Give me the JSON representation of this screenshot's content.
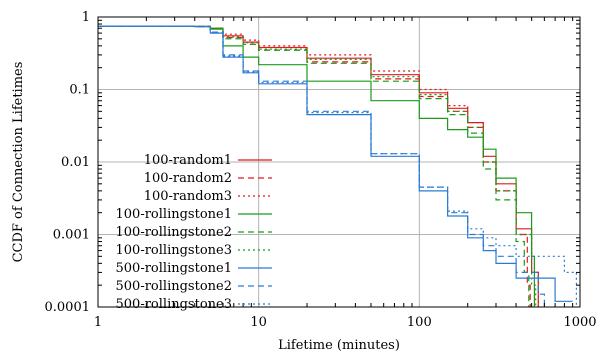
{
  "chart_data": {
    "type": "line",
    "title": "",
    "xlabel": "Lifetime (minutes)",
    "ylabel": "CCDF of Connection Lifetimes",
    "x_scale": "log",
    "y_scale": "log",
    "xlim": [
      1,
      1000
    ],
    "ylim": [
      0.0001,
      1
    ],
    "grid": true,
    "legend_position": "left-center",
    "x_ticks": [
      {
        "value": 1,
        "label": "1"
      },
      {
        "value": 10,
        "label": "10"
      },
      {
        "value": 100,
        "label": "100"
      },
      {
        "value": 1000,
        "label": "1000"
      }
    ],
    "y_ticks": [
      {
        "value": 1,
        "label": "1"
      },
      {
        "value": 0.1,
        "label": "0.1"
      },
      {
        "value": 0.01,
        "label": "0.01"
      },
      {
        "value": 0.001,
        "label": "0.001"
      },
      {
        "value": 0.0001,
        "label": "0.0001"
      }
    ],
    "series": [
      {
        "name": "100-random1",
        "color": "#e41a1c",
        "dash": "solid",
        "x": [
          1,
          4,
          5,
          6,
          8,
          10,
          20,
          50,
          100,
          150,
          200,
          250,
          300,
          400,
          500,
          550
        ],
        "y": [
          0.75,
          0.74,
          0.7,
          0.55,
          0.45,
          0.38,
          0.27,
          0.16,
          0.09,
          0.055,
          0.035,
          0.012,
          0.005,
          0.0012,
          0.0003,
          0.0001
        ]
      },
      {
        "name": "100-random2",
        "color": "#e41a1c",
        "dash": "6,4",
        "x": [
          1,
          4,
          5,
          6,
          8,
          10,
          20,
          50,
          100,
          150,
          200,
          250,
          300,
          400,
          470,
          490
        ],
        "y": [
          0.75,
          0.74,
          0.7,
          0.52,
          0.42,
          0.35,
          0.24,
          0.14,
          0.08,
          0.05,
          0.03,
          0.01,
          0.004,
          0.001,
          0.0002,
          0.0001
        ]
      },
      {
        "name": "100-random3",
        "color": "#e41a1c",
        "dash": "2,3",
        "x": [
          1,
          4,
          5,
          6,
          8,
          10,
          20,
          50,
          100,
          150,
          200,
          250,
          300,
          400,
          500,
          550
        ],
        "y": [
          0.75,
          0.74,
          0.7,
          0.58,
          0.48,
          0.4,
          0.3,
          0.18,
          0.1,
          0.06,
          0.035,
          0.01,
          0.004,
          0.001,
          0.0003,
          0.0001
        ]
      },
      {
        "name": "100-rollingstone1",
        "color": "#1a9c1a",
        "dash": "solid",
        "x": [
          1,
          4,
          5,
          6,
          8,
          10,
          20,
          50,
          100,
          150,
          200,
          250,
          300,
          400,
          500,
          520
        ],
        "y": [
          0.75,
          0.74,
          0.68,
          0.4,
          0.28,
          0.22,
          0.13,
          0.07,
          0.04,
          0.028,
          0.022,
          0.015,
          0.006,
          0.002,
          0.0005,
          0.0001
        ]
      },
      {
        "name": "100-rollingstone2",
        "color": "#1a9c1a",
        "dash": "6,4",
        "x": [
          1,
          4,
          5,
          6,
          8,
          10,
          20,
          50,
          100,
          150,
          200,
          250,
          300,
          400,
          450,
          480
        ],
        "y": [
          0.75,
          0.74,
          0.7,
          0.5,
          0.42,
          0.35,
          0.23,
          0.13,
          0.075,
          0.045,
          0.025,
          0.008,
          0.003,
          0.0008,
          0.0003,
          0.0001
        ]
      },
      {
        "name": "100-rollingstone3",
        "color": "#1a9c1a",
        "dash": "2,3",
        "x": [
          1,
          4,
          5,
          6,
          8,
          10,
          20,
          50,
          100,
          150,
          200,
          250,
          300,
          400,
          500,
          530
        ],
        "y": [
          0.75,
          0.74,
          0.7,
          0.53,
          0.44,
          0.36,
          0.26,
          0.15,
          0.085,
          0.05,
          0.03,
          0.01,
          0.004,
          0.001,
          0.0002,
          0.0001
        ]
      },
      {
        "name": "500-rollingstone1",
        "color": "#2b7bd6",
        "dash": "solid",
        "x": [
          1,
          4,
          5,
          6,
          8,
          10,
          20,
          50,
          100,
          150,
          200,
          250,
          300,
          400,
          700,
          900
        ],
        "y": [
          0.75,
          0.74,
          0.6,
          0.28,
          0.17,
          0.12,
          0.045,
          0.012,
          0.004,
          0.0018,
          0.0009,
          0.0006,
          0.0004,
          0.00025,
          0.00012,
          0.00012
        ]
      },
      {
        "name": "500-rollingstone2",
        "color": "#2b7bd6",
        "dash": "6,4",
        "x": [
          1,
          4,
          5,
          6,
          8,
          10,
          20,
          50,
          100,
          150,
          200,
          250,
          300,
          400,
          550,
          600
        ],
        "y": [
          0.75,
          0.74,
          0.62,
          0.3,
          0.18,
          0.13,
          0.05,
          0.013,
          0.0045,
          0.002,
          0.001,
          0.0007,
          0.0005,
          0.0003,
          0.00015,
          0.0001
        ]
      },
      {
        "name": "500-rollingstone3",
        "color": "#2b7bd6",
        "dash": "2,3",
        "x": [
          1,
          4,
          5,
          6,
          8,
          10,
          20,
          50,
          100,
          150,
          200,
          250,
          300,
          400,
          800,
          950
        ],
        "y": [
          0.75,
          0.74,
          0.61,
          0.29,
          0.175,
          0.125,
          0.048,
          0.013,
          0.0045,
          0.0021,
          0.0012,
          0.0009,
          0.0007,
          0.0005,
          0.0003,
          0.0001
        ]
      }
    ]
  }
}
